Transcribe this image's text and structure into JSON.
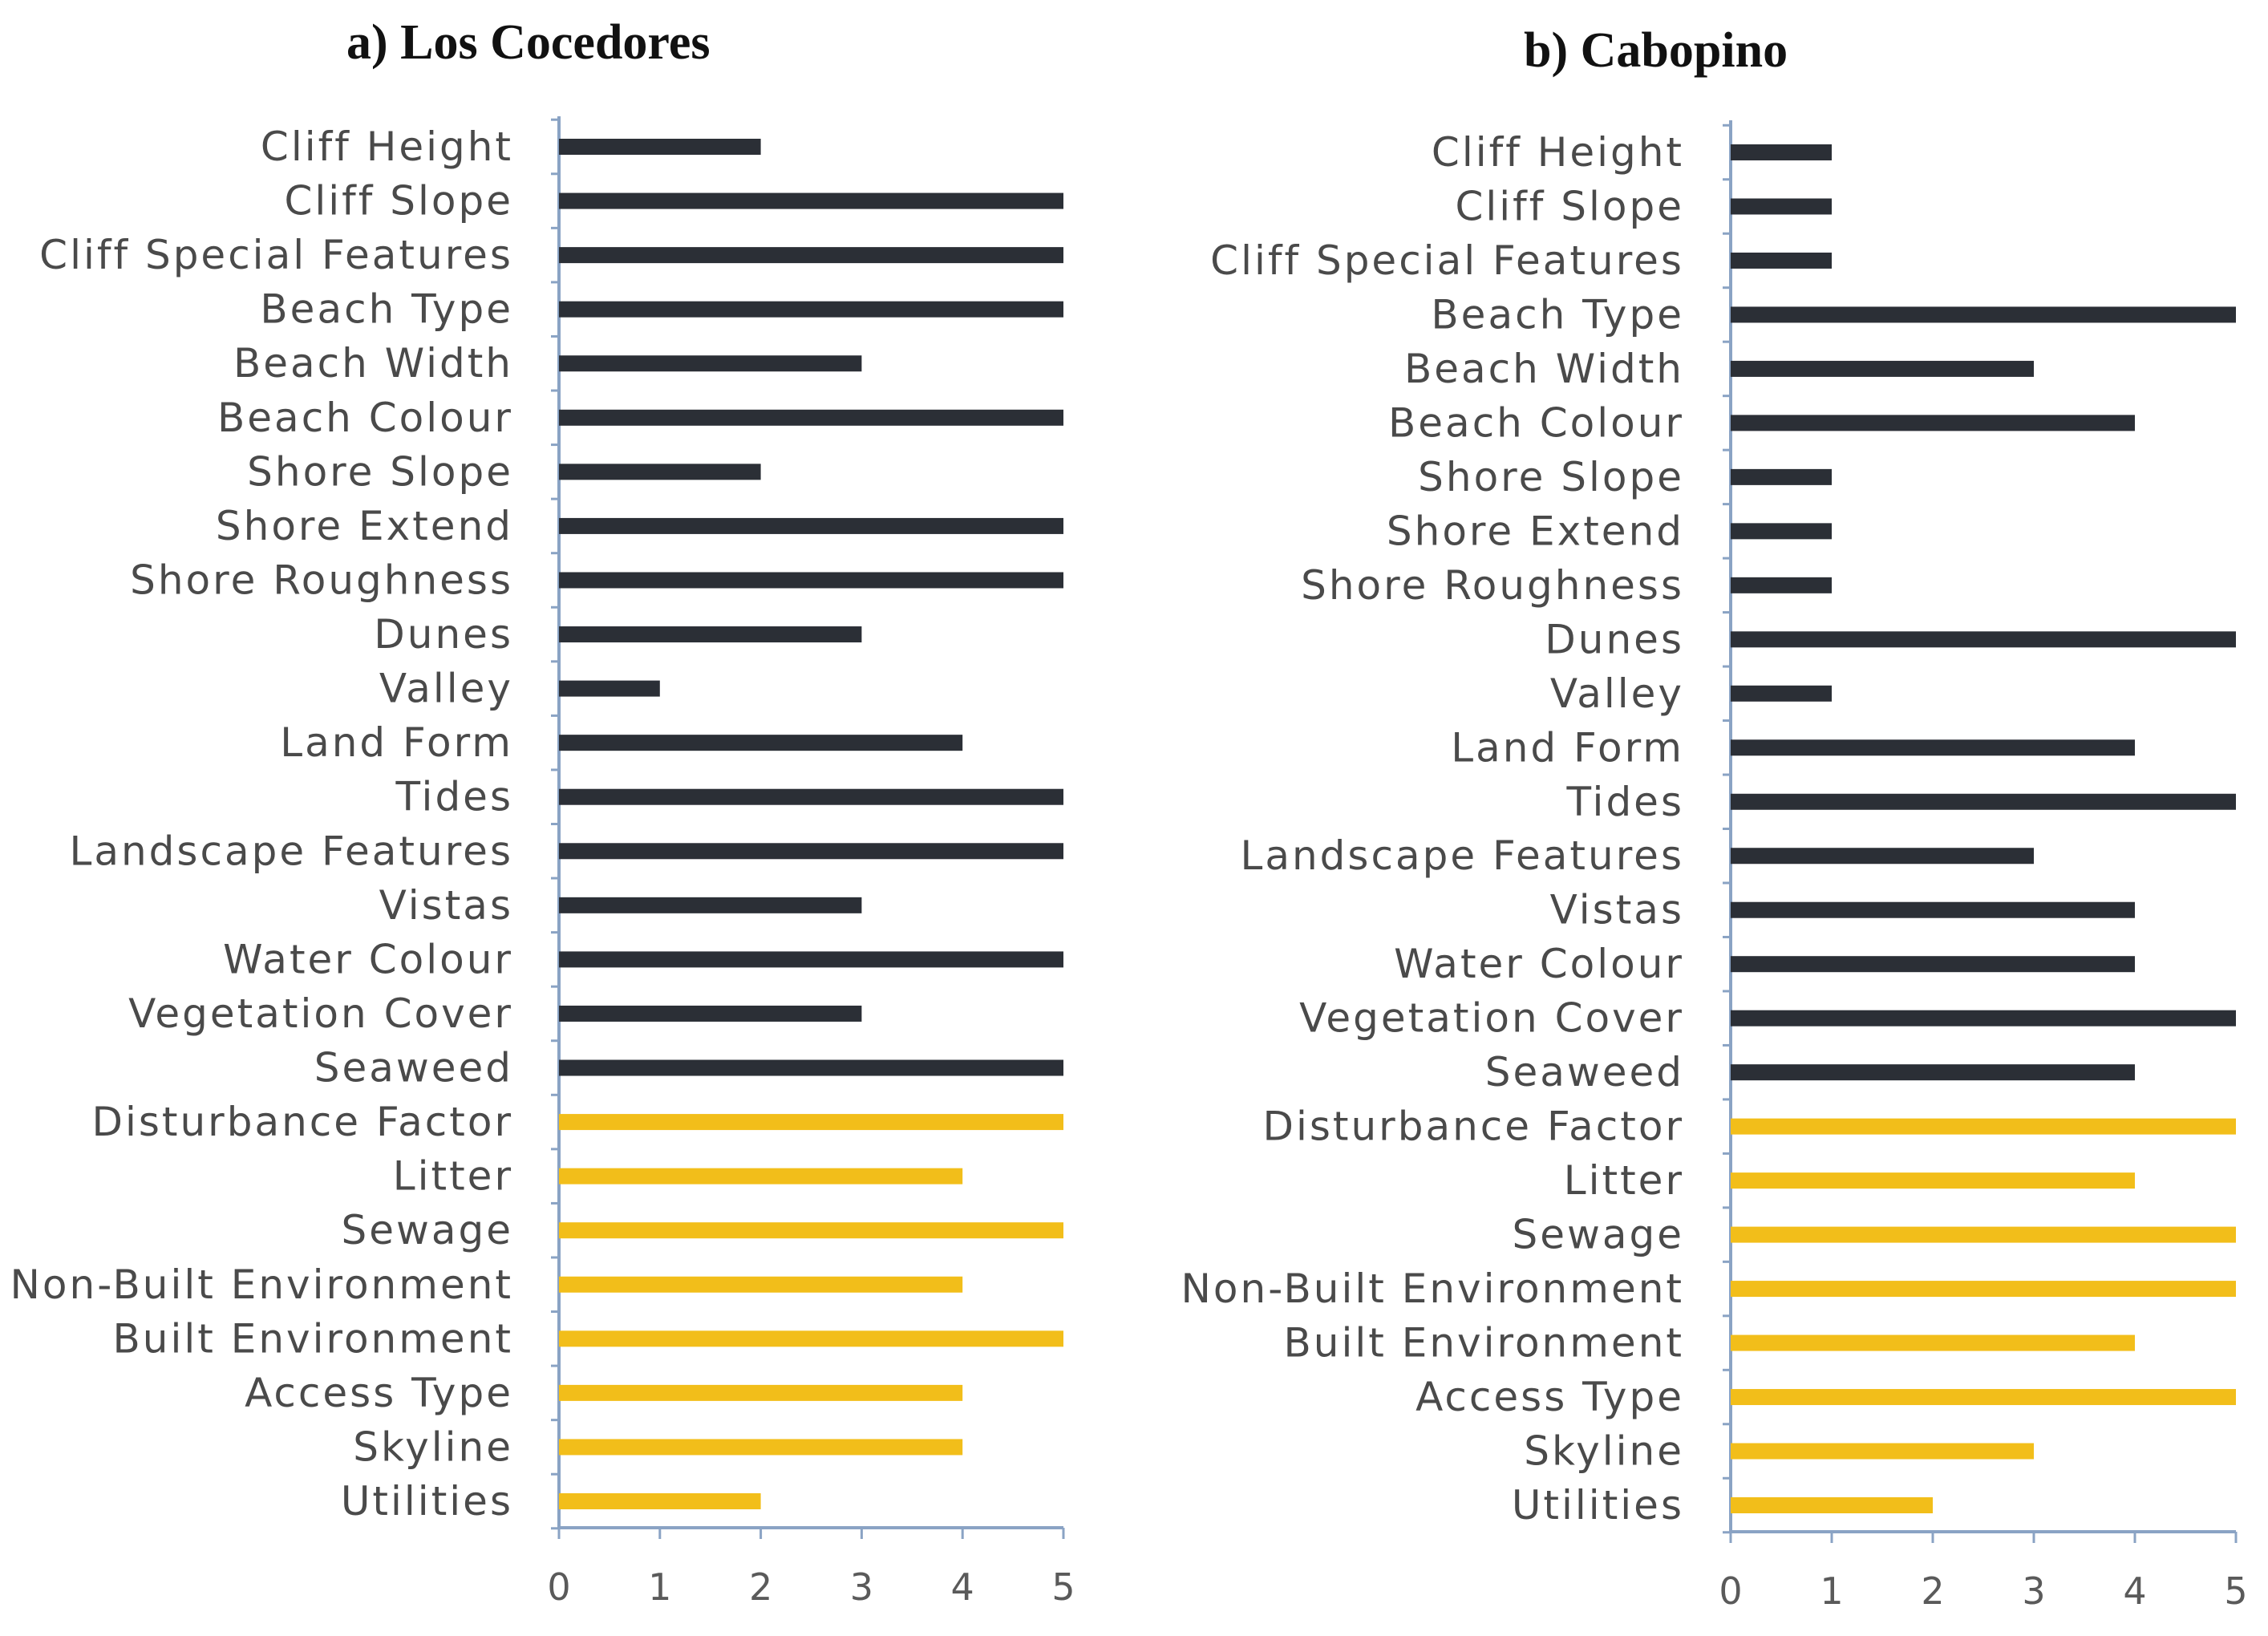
{
  "colors": {
    "physical": "#2b2f36",
    "human": "#f2be1a",
    "axis": "#8aa3c4"
  },
  "chart_data": [
    {
      "type": "bar",
      "orientation": "horizontal",
      "title": "a) Los Cocedores",
      "xlim": [
        0,
        5
      ],
      "xticks": [
        "0",
        "1",
        "2",
        "3",
        "4",
        "5"
      ],
      "categories": [
        "Cliff Height",
        "Cliff Slope",
        "Cliff Special Features",
        "Beach Type",
        "Beach Width",
        "Beach Colour",
        "Shore Slope",
        "Shore Extend",
        "Shore Roughness",
        "Dunes",
        "Valley",
        "Land Form",
        "Tides",
        "Landscape Features",
        "Vistas",
        "Water Colour",
        "Vegetation Cover",
        "Seaweed",
        "Disturbance Factor",
        "Litter",
        "Sewage",
        "Non-Built Environment",
        "Built Environment",
        "Access Type",
        "Skyline",
        "Utilities"
      ],
      "values": [
        2,
        5,
        5,
        5,
        3,
        5,
        2,
        5,
        5,
        3,
        1,
        4,
        5,
        5,
        3,
        5,
        3,
        5,
        5,
        4,
        5,
        4,
        5,
        4,
        4,
        2
      ],
      "groups": [
        "physical",
        "physical",
        "physical",
        "physical",
        "physical",
        "physical",
        "physical",
        "physical",
        "physical",
        "physical",
        "physical",
        "physical",
        "physical",
        "physical",
        "physical",
        "physical",
        "physical",
        "physical",
        "human",
        "human",
        "human",
        "human",
        "human",
        "human",
        "human",
        "human"
      ]
    },
    {
      "type": "bar",
      "orientation": "horizontal",
      "title": "b) Cabopino",
      "xlim": [
        0,
        5
      ],
      "xticks": [
        "0",
        "1",
        "2",
        "3",
        "4",
        "5"
      ],
      "categories": [
        "Cliff Height",
        "Cliff Slope",
        "Cliff Special Features",
        "Beach Type",
        "Beach Width",
        "Beach Colour",
        "Shore Slope",
        "Shore Extend",
        "Shore Roughness",
        "Dunes",
        "Valley",
        "Land Form",
        "Tides",
        "Landscape Features",
        "Vistas",
        "Water Colour",
        "Vegetation Cover",
        "Seaweed",
        "Disturbance Factor",
        "Litter",
        "Sewage",
        "Non-Built Environment",
        "Built Environment",
        "Access Type",
        "Skyline",
        "Utilities"
      ],
      "values": [
        1,
        1,
        1,
        5,
        3,
        4,
        1,
        1,
        1,
        5,
        1,
        4,
        5,
        3,
        4,
        4,
        5,
        4,
        5,
        4,
        5,
        5,
        4,
        5,
        3,
        2
      ],
      "groups": [
        "physical",
        "physical",
        "physical",
        "physical",
        "physical",
        "physical",
        "physical",
        "physical",
        "physical",
        "physical",
        "physical",
        "physical",
        "physical",
        "physical",
        "physical",
        "physical",
        "physical",
        "physical",
        "human",
        "human",
        "human",
        "human",
        "human",
        "human",
        "human",
        "human"
      ]
    }
  ]
}
